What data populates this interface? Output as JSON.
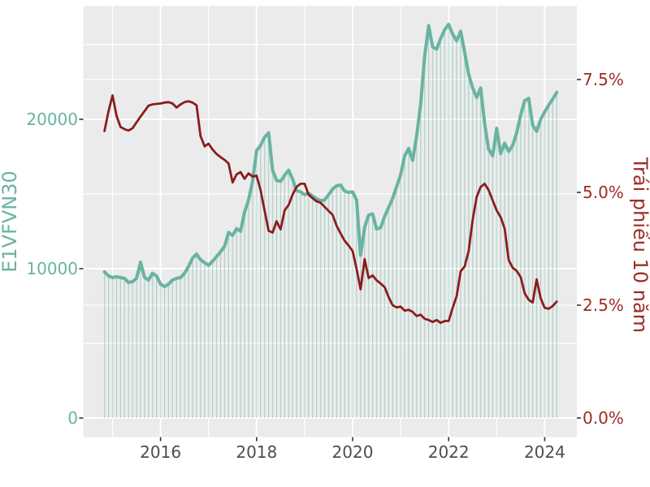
{
  "figure": {
    "background": "#ffffff",
    "panel_background": "#ebebeb",
    "grid_color": "#ffffff",
    "tick_mark_color": "#333333",
    "x_tick_label_color": "#4d4d4d"
  },
  "chart_data": {
    "type": "line",
    "title": "",
    "x_start": "2014-11",
    "x_step": "1 month",
    "x_axis": {
      "tick_labels": [
        "2016",
        "2018",
        "2020",
        "2022",
        "2024"
      ],
      "tick_values": [
        2016,
        2018,
        2020,
        2022,
        2024
      ],
      "minor_gridlines": [
        2015,
        2017,
        2019,
        2021,
        2023
      ],
      "range_years": [
        2014.4,
        2024.66
      ]
    },
    "left_axis": {
      "title": "E1VFVN30",
      "color": "#69b3a2",
      "tick_labels": [
        "0",
        "10000",
        "20000"
      ],
      "tick_values": [
        0,
        10000,
        20000
      ],
      "minor_gridlines": [
        5000,
        15000,
        25000
      ],
      "range": [
        -1320,
        27650
      ]
    },
    "right_axis": {
      "title": "Trái phiếu 10 năm",
      "color": "#9d2c25",
      "tick_labels": [
        "0.0%",
        "2.5%",
        "5.0%",
        "7.5%"
      ],
      "tick_values": [
        0,
        2.5,
        5.0,
        7.5
      ],
      "extra_gridlines": [
        2.5,
        7.5
      ]
    },
    "series": [
      {
        "name": "E1VFVN30",
        "axis": "left",
        "color": "#69b3a2",
        "stem_color": "#69b3a2",
        "style": "line_with_stems",
        "values": [
          9780,
          9510,
          9400,
          9460,
          9400,
          9350,
          9070,
          9130,
          9350,
          10430,
          9420,
          9240,
          9690,
          9510,
          8970,
          8800,
          8970,
          9240,
          9350,
          9400,
          9700,
          10160,
          10700,
          10980,
          10600,
          10400,
          10230,
          10500,
          10800,
          11140,
          11500,
          12430,
          12230,
          12680,
          12500,
          13780,
          14590,
          15870,
          17900,
          18250,
          18800,
          19100,
          16600,
          15900,
          15850,
          16250,
          16590,
          16000,
          15230,
          15140,
          14950,
          15050,
          14870,
          14680,
          14550,
          14600,
          14950,
          15330,
          15550,
          15600,
          15200,
          15100,
          15140,
          14600,
          10900,
          12770,
          13590,
          13670,
          12650,
          12750,
          13500,
          14100,
          14700,
          15500,
          16300,
          17550,
          18050,
          17250,
          18900,
          21000,
          24200,
          26270,
          24840,
          24700,
          25400,
          26000,
          26360,
          25700,
          25250,
          25900,
          24480,
          23010,
          22100,
          21470,
          22100,
          19700,
          18000,
          17560,
          19400,
          17700,
          18400,
          17850,
          18250,
          19100,
          20300,
          21250,
          21400,
          19600,
          19200,
          20000,
          20500,
          20950,
          21350,
          21800
        ]
      },
      {
        "name": "Trái phiếu 10 năm",
        "axis": "right",
        "color": "#8b1c1c",
        "style": "line",
        "values": [
          6.36,
          6.8,
          7.15,
          6.7,
          6.45,
          6.4,
          6.37,
          6.42,
          6.55,
          6.68,
          6.8,
          6.92,
          6.95,
          6.96,
          6.97,
          6.99,
          7.0,
          6.97,
          6.88,
          6.95,
          7.0,
          7.02,
          6.99,
          6.93,
          6.25,
          6.02,
          6.08,
          5.95,
          5.85,
          5.78,
          5.72,
          5.64,
          5.22,
          5.4,
          5.45,
          5.3,
          5.42,
          5.35,
          5.37,
          5.05,
          4.6,
          4.15,
          4.11,
          4.36,
          4.18,
          4.6,
          4.72,
          4.95,
          5.12,
          5.19,
          5.19,
          4.95,
          4.87,
          4.8,
          4.77,
          4.68,
          4.59,
          4.5,
          4.26,
          4.09,
          3.93,
          3.82,
          3.7,
          3.3,
          2.85,
          3.52,
          3.1,
          3.16,
          3.05,
          2.98,
          2.9,
          2.68,
          2.5,
          2.45,
          2.47,
          2.38,
          2.4,
          2.35,
          2.26,
          2.29,
          2.2,
          2.17,
          2.13,
          2.17,
          2.11,
          2.15,
          2.15,
          2.44,
          2.7,
          3.25,
          3.36,
          3.7,
          4.4,
          4.9,
          5.12,
          5.19,
          5.05,
          4.82,
          4.6,
          4.45,
          4.2,
          3.5,
          3.33,
          3.26,
          3.12,
          2.76,
          2.62,
          2.56,
          3.07,
          2.65,
          2.44,
          2.42,
          2.48,
          2.58
        ]
      }
    ]
  }
}
